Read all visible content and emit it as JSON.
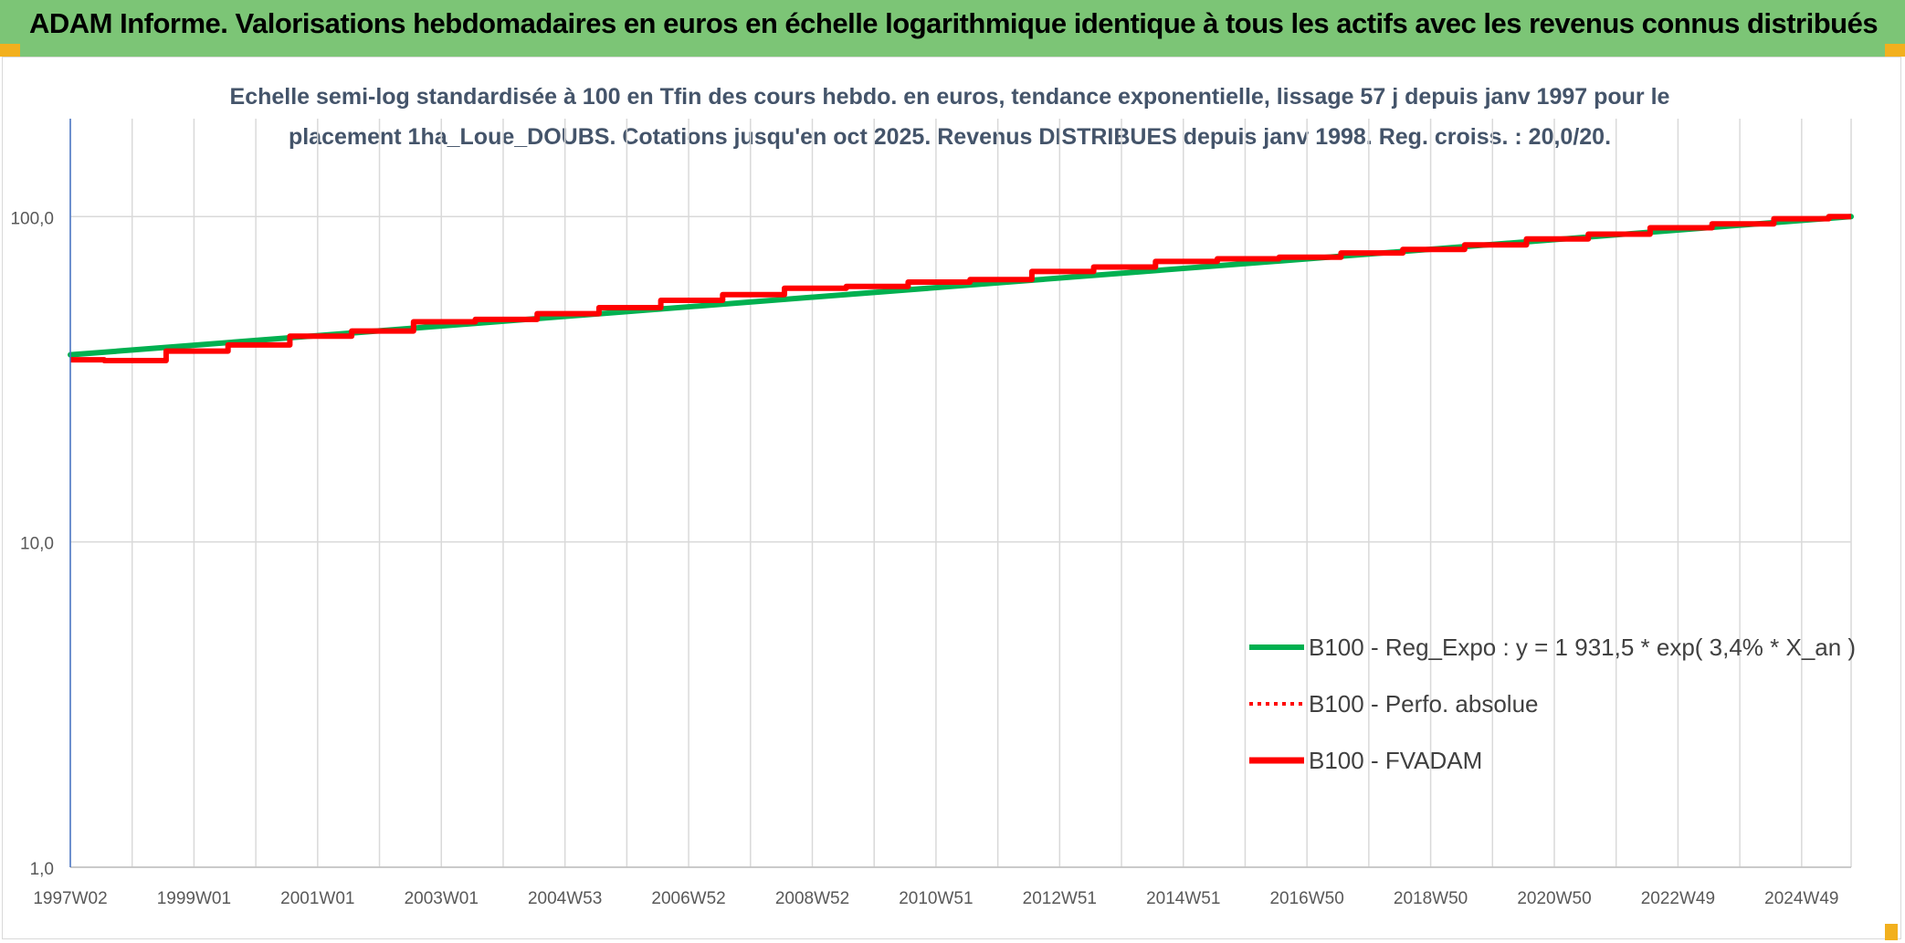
{
  "header": {
    "title": "ADAM Informe. Valorisations hebdomadaires en euros en échelle logarithmique identique à tous les actifs avec les revenus connus distribués"
  },
  "chart_data": {
    "type": "line",
    "title": "Echelle semi-log standardisée à 100 en Tfin des cours hebdo. en euros, tendance exponentielle, lissage 57 j depuis janv 1997 pour le",
    "subtitle": "placement 1ha_Loue_DOUBS. Cotations jusqu'en oct 2025. Revenus DISTRIBUES depuis janv 1998. Reg. croiss. : 20,0/20.",
    "y_scale": "log",
    "ylim": [
      1,
      200
    ],
    "y_ticks": [
      {
        "value": 1,
        "label": "1,0"
      },
      {
        "value": 10,
        "label": "10,0"
      },
      {
        "value": 100,
        "label": "100,0"
      }
    ],
    "xlim": [
      1997.0,
      2025.8
    ],
    "x_ticks": [
      {
        "value": 1997.0,
        "label": "1997W02"
      },
      {
        "value": 1999.0,
        "label": "1999W01"
      },
      {
        "value": 2001.0,
        "label": "2001W01"
      },
      {
        "value": 2003.0,
        "label": "2003W01"
      },
      {
        "value": 2005.0,
        "label": "2004W53"
      },
      {
        "value": 2007.0,
        "label": "2006W52"
      },
      {
        "value": 2009.0,
        "label": "2008W52"
      },
      {
        "value": 2011.0,
        "label": "2010W51"
      },
      {
        "value": 2013.0,
        "label": "2012W51"
      },
      {
        "value": 2015.0,
        "label": "2014W51"
      },
      {
        "value": 2017.0,
        "label": "2016W50"
      },
      {
        "value": 2019.0,
        "label": "2018W50"
      },
      {
        "value": 2021.0,
        "label": "2020W50"
      },
      {
        "value": 2023.0,
        "label": "2022W49"
      },
      {
        "value": 2025.0,
        "label": "2024W49"
      }
    ],
    "legend_position": "lower-right",
    "series": [
      {
        "name": "B100 - Reg_Expo : y = 1 931,5 * exp( 3,4% *  X_an )",
        "color": "#00b050",
        "style": "solid",
        "x": [
          1997.0,
          2025.8
        ],
        "y": [
          37.6,
          100.0
        ]
      },
      {
        "name": "B100 - Perfo. absolue",
        "color": "#ff0000",
        "style": "dotted",
        "x": [
          1997.0,
          1998.0,
          1999.0,
          2000.0,
          2001.0,
          2002.0,
          2003.0,
          2004.0,
          2005.0,
          2006.0,
          2007.0,
          2008.0,
          2009.0,
          2010.0,
          2011.0,
          2012.0,
          2013.0,
          2014.0,
          2015.0,
          2016.0,
          2017.0,
          2018.0,
          2019.0,
          2020.0,
          2021.0,
          2022.0,
          2023.0,
          2024.0,
          2025.0,
          2025.8
        ],
        "y": [
          36.3,
          36.1,
          38.6,
          40.3,
          42.9,
          44.5,
          47.5,
          48.3,
          50.3,
          52.5,
          55.3,
          57.6,
          60.2,
          61.0,
          62.9,
          64.0,
          67.8,
          70.0,
          72.8,
          74.2,
          75.0,
          77.3,
          79.3,
          81.9,
          85.4,
          88.3,
          92.4,
          95.0,
          98.5,
          100.0
        ]
      },
      {
        "name": "B100 - FVADAM",
        "color": "#ff0000",
        "style": "solid",
        "x": [
          1997.0,
          1998.0,
          1999.0,
          2000.0,
          2001.0,
          2002.0,
          2003.0,
          2004.0,
          2005.0,
          2006.0,
          2007.0,
          2008.0,
          2009.0,
          2010.0,
          2011.0,
          2012.0,
          2013.0,
          2014.0,
          2015.0,
          2016.0,
          2017.0,
          2018.0,
          2019.0,
          2020.0,
          2021.0,
          2022.0,
          2023.0,
          2024.0,
          2025.0,
          2025.8
        ],
        "y": [
          36.3,
          36.1,
          38.6,
          40.3,
          42.9,
          44.5,
          47.5,
          48.3,
          50.3,
          52.5,
          55.3,
          57.6,
          60.2,
          61.0,
          62.9,
          64.0,
          67.8,
          70.0,
          72.8,
          74.2,
          75.0,
          77.3,
          79.3,
          81.9,
          85.4,
          88.3,
          92.4,
          95.0,
          98.5,
          100.0
        ]
      }
    ]
  }
}
